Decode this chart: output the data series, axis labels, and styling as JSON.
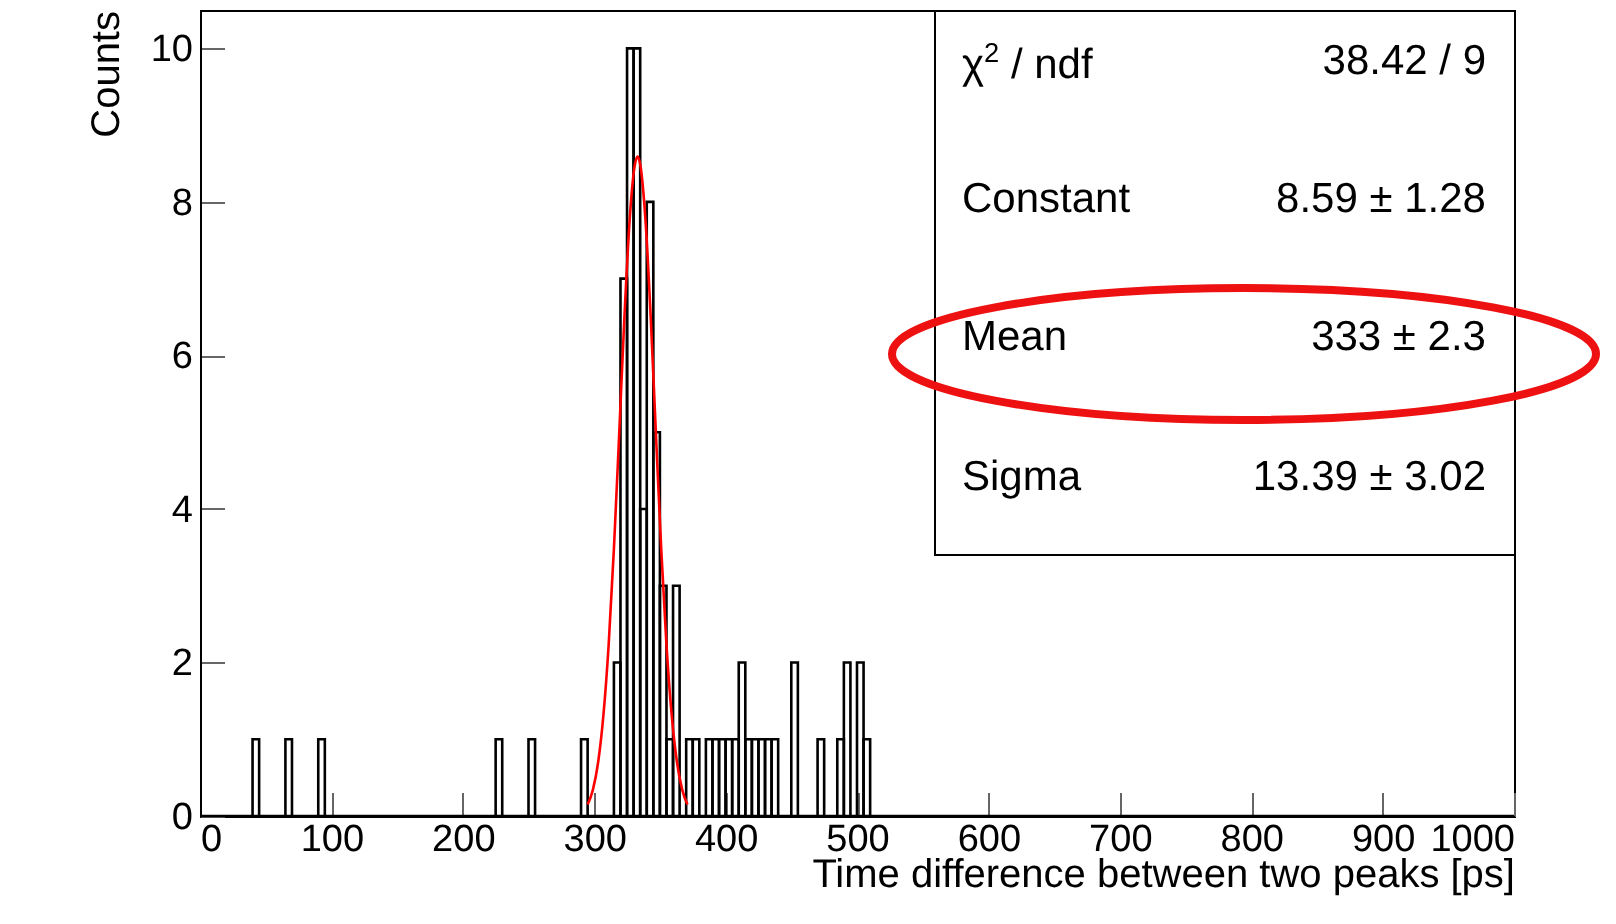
{
  "chart_data": {
    "type": "histogram",
    "xlabel": "Time difference between two peaks [ps]",
    "ylabel": "Counts",
    "xlim": [
      0,
      1000
    ],
    "xticks": [
      0,
      100,
      200,
      300,
      400,
      500,
      600,
      700,
      800,
      900,
      1000
    ],
    "ylim": [
      0,
      10.5
    ],
    "yticks": [
      0,
      2,
      4,
      6,
      8,
      10
    ],
    "grid": false,
    "annotations": [
      "χ$^{2}$ / ndf",
      "38.42 / 9",
      "Constant",
      "8.59 ± 1.28",
      "Mean",
      "333 ± 2.3",
      "Sigma",
      "13.39 ± 3.02"
    ],
    "series": [
      {
        "color": "#000000",
        "bins": [
          0,
          40,
          45,
          65,
          70,
          90,
          95,
          225,
          230,
          250,
          255,
          290,
          295,
          315,
          320,
          325,
          330,
          335,
          340,
          345,
          350,
          355,
          360,
          365,
          370,
          375,
          380,
          385,
          390,
          395,
          400,
          405,
          410,
          415,
          420,
          425,
          430,
          435,
          440,
          450,
          455,
          470,
          475,
          485,
          490,
          495,
          500,
          505,
          510,
          1000
        ],
        "values": [
          0,
          1,
          0,
          1,
          0,
          1,
          0,
          1,
          0,
          1,
          0,
          1,
          0,
          2,
          7,
          10,
          10,
          4,
          8,
          5,
          3,
          1,
          3,
          0,
          1,
          1,
          0,
          1,
          1,
          1,
          1,
          1,
          2,
          1,
          1,
          1,
          1,
          1,
          0,
          2,
          0,
          1,
          0,
          1,
          2,
          0,
          2,
          1,
          0
        ]
      },
      {
        "type": "line",
        "color": "#ff0000",
        "x": [
          295,
          299,
          303,
          307,
          311,
          315,
          319,
          323,
          327,
          331,
          333,
          335,
          339,
          343,
          347,
          351,
          355,
          359,
          363,
          367,
          371
        ],
        "values": [
          0.15,
          0.34,
          0.7,
          1.31,
          2.23,
          3.48,
          4.97,
          6.5,
          7.77,
          8.49,
          8.59,
          8.49,
          7.77,
          6.5,
          4.97,
          3.48,
          2.23,
          1.31,
          0.7,
          0.34,
          0.15
        ]
      }
    ]
  }
}
